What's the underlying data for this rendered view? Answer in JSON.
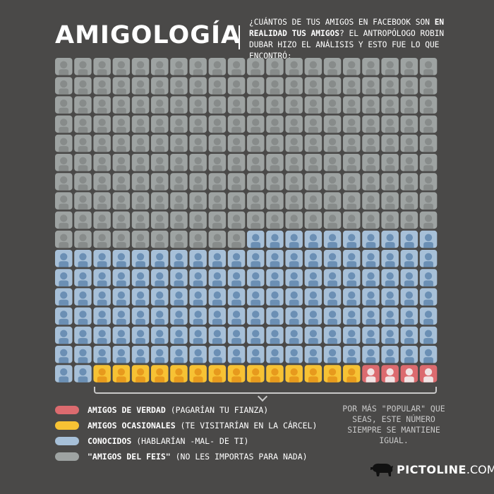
{
  "title": "AMIGOLOGÍA",
  "subtitle": {
    "part1": "¿CUÁNTOS DE TUS AMIGOS EN FACEBOOK SON ",
    "bold": "EN REALIDAD TUS AMIGOS",
    "part2": "? EL ANTROPÓLOGO ROBIN DUBAR HIZO EL ANÁLISIS Y ESTO FUE LO QUE ENCONTRÓ:"
  },
  "chart_data": {
    "type": "waffle",
    "title": "AMIGOLOGÍA",
    "rows": 17,
    "columns": 20,
    "fill_order": "top-left to bottom-right, row by row",
    "series": [
      {
        "name": "\"AMIGOS DEL FEIS\" (NO LES IMPORTAS PARA NADA)",
        "value": 190,
        "color": "#9ea3a2"
      },
      {
        "name": "CONOCIDOS (HABLARÍAN -MAL- DE TI)",
        "value": 132,
        "color": "#a7c0d8"
      },
      {
        "name": "AMIGOS OCASIONALES (TE VISITARÍAN EN LA CÁRCEL)",
        "value": 14,
        "color": "#f7c234"
      },
      {
        "name": "AMIGOS DE VERDAD (PAGARÍAN TU FIANZA)",
        "value": 4,
        "color": "#dc6b6f"
      }
    ]
  },
  "legend": [
    {
      "bold": "AMIGOS DE VERDAD",
      "rest": " (PAGARÍAN TU FIANZA)",
      "color": "#dc6b6f"
    },
    {
      "bold": "AMIGOS OCASIONALES",
      "rest": " (TE VISITARÍAN EN LA CÁRCEL)",
      "color": "#f7c234"
    },
    {
      "bold": "CONOCIDOS",
      "rest": " (HABLARÍAN -MAL- DE TI)",
      "color": "#a7c0d8"
    },
    {
      "bold": "\"AMIGOS DEL FEIS\"",
      "rest": " (NO LES IMPORTAS PARA NADA)",
      "color": "#9ea3a2"
    }
  ],
  "note": "POR MÁS \"POPULAR\" QUE SEAS, ESTE NÚMERO SIEMPRE SE MANTIENE IGUAL.",
  "brand": {
    "name": "PICTOLINE",
    "domain": ".COM"
  }
}
